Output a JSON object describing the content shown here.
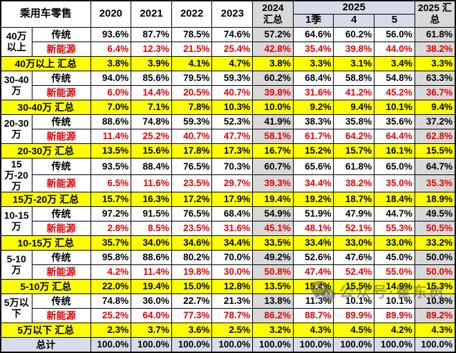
{
  "chart_data": {
    "type": "table",
    "title": "乘用车零售",
    "header": {
      "corner": "乘用车零售",
      "years": [
        "2020",
        "2021",
        "2022",
        "2023"
      ],
      "col_2024_total": [
        "2024",
        "汇总"
      ],
      "group_2025": "2025",
      "sub_2025": [
        "1季",
        "4",
        "5"
      ],
      "col_2025_total": [
        "2025 汇",
        "总"
      ]
    },
    "columns": [
      "2020",
      "2021",
      "2022",
      "2023",
      "2024汇总",
      "2025-1季",
      "2025-4",
      "2025-5",
      "2025汇总"
    ],
    "row_type_labels": {
      "traditional": "传统",
      "nev": "新能源"
    },
    "groups": [
      {
        "range": "40万以上",
        "traditional": [
          "93.6%",
          "87.7%",
          "78.5%",
          "74.6%",
          "57.2%",
          "64.6%",
          "60.2%",
          "56.0%",
          "61.8%"
        ],
        "nev": [
          "6.4%",
          "12.3%",
          "21.5%",
          "25.4%",
          "42.8%",
          "35.4%",
          "39.8%",
          "44.0%",
          "38.2%"
        ],
        "total_label": "40万以上 汇总",
        "total": [
          "3.8%",
          "3.9%",
          "4.1%",
          "4.7%",
          "3.8%",
          "3.3%",
          "3.1%",
          "3.4%",
          "3.3%"
        ]
      },
      {
        "range": "30-40万",
        "traditional": [
          "94.0%",
          "85.6%",
          "79.5%",
          "59.3%",
          "60.2%",
          "68.4%",
          "58.8%",
          "54.8%",
          "63.3%"
        ],
        "nev": [
          "6.0%",
          "14.4%",
          "20.5%",
          "40.7%",
          "39.8%",
          "31.6%",
          "41.2%",
          "45.2%",
          "36.7%"
        ],
        "total_label": "30-40万 汇总",
        "total": [
          "7.0%",
          "7.1%",
          "7.8%",
          "10.3%",
          "10.0%",
          "9.2%",
          "9.4%",
          "10.1%",
          "9.4%"
        ]
      },
      {
        "range": "20-30万",
        "traditional": [
          "88.6%",
          "74.8%",
          "59.3%",
          "52.3%",
          "41.9%",
          "38.3%",
          "35.8%",
          "35.6%",
          "37.2%"
        ],
        "nev": [
          "11.4%",
          "25.2%",
          "40.7%",
          "47.7%",
          "58.1%",
          "61.7%",
          "64.2%",
          "64.4%",
          "62.8%"
        ],
        "total_label": "20-30万 汇总",
        "total": [
          "13.5%",
          "15.6%",
          "17.8%",
          "17.3%",
          "16.7%",
          "15.2%",
          "15.7%",
          "16.1%",
          "15.5%"
        ]
      },
      {
        "range": "15万-20万",
        "traditional": [
          "93.5%",
          "88.4%",
          "76.5%",
          "70.3%",
          "60.7%",
          "65.6%",
          "61.8%",
          "65.0%",
          "64.7%"
        ],
        "nev": [
          "6.5%",
          "11.6%",
          "23.5%",
          "29.7%",
          "39.3%",
          "34.4%",
          "38.2%",
          "35.0%",
          "35.3%"
        ],
        "total_label": "15万-20万 汇总",
        "total": [
          "15.7%",
          "16.3%",
          "17.2%",
          "17.9%",
          "19.4%",
          "19.2%",
          "18.7%",
          "18.4%",
          "18.9%"
        ]
      },
      {
        "range": "10-15万",
        "traditional": [
          "97.2%",
          "91.5%",
          "76.5%",
          "68.4%",
          "54.9%",
          "51.9%",
          "47.9%",
          "44.7%",
          "49.5%"
        ],
        "nev": [
          "2.8%",
          "8.5%",
          "23.5%",
          "31.6%",
          "45.1%",
          "48.1%",
          "52.1%",
          "55.3%",
          "50.5%"
        ],
        "total_label": "10-15万 汇总",
        "total": [
          "35.7%",
          "34.0%",
          "34.6%",
          "34.4%",
          "33.5%",
          "33.4%",
          "33.0%",
          "33.0%",
          "33.2%"
        ]
      },
      {
        "range": "5-10万",
        "traditional": [
          "95.8%",
          "88.6%",
          "80.2%",
          "70.0%",
          "49.2%",
          "52.6%",
          "47.6%",
          "45.0%",
          "50.0%"
        ],
        "nev": [
          "4.2%",
          "11.4%",
          "19.8%",
          "30.0%",
          "50.8%",
          "47.4%",
          "52.4%",
          "55.0%",
          "50.0%"
        ],
        "total_label": "5-10万 汇总",
        "total": [
          "22.0%",
          "19.4%",
          "15.0%",
          "12.8%",
          "13.5%",
          "15.4%",
          "15.5%",
          "14.9%",
          "15.3%"
        ]
      },
      {
        "range": "5万以下",
        "traditional": [
          "74.8%",
          "36.0%",
          "22.7%",
          "21.3%",
          "13.8%",
          "11.3%",
          "10.1%",
          "10.1%",
          "10.8%"
        ],
        "nev": [
          "25.2%",
          "64.0%",
          "77.3%",
          "78.7%",
          "86.2%",
          "88.7%",
          "89.9%",
          "89.9%",
          "89.2%"
        ],
        "total_label": "5万以下 汇总",
        "total": [
          "2.3%",
          "3.7%",
          "3.6%",
          "2.5%",
          "3.2%",
          "4.3%",
          "4.5%",
          "4.2%",
          "4.3%"
        ]
      }
    ],
    "grand_total_label": "总计",
    "grand_total": [
      "100.0%",
      "100.0%",
      "100.0%",
      "100.0%",
      "100.0%",
      "100.0%",
      "100.0%",
      "100.0%",
      "100.0%"
    ]
  },
  "watermark": {
    "icon": "wechat-icon",
    "text": "公众号·崔东树"
  },
  "colors": {
    "highlight_yellow": "#FFFF00",
    "summary_grey": "#D9D9D9",
    "header_lavender": "#D8DCEA",
    "nev_red": "#E60000"
  }
}
